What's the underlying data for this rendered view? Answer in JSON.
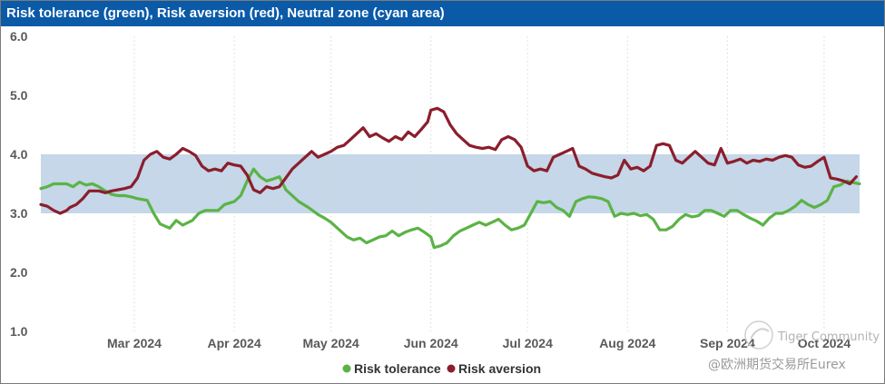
{
  "chart_data": {
    "type": "line",
    "title": "Risk tolerance (green), Risk aversion (red), Neutral zone (cyan area)",
    "ylim": [
      1.0,
      6.0
    ],
    "yticks": [
      "6.0",
      "5.0",
      "4.0",
      "3.0",
      "2.0",
      "1.0"
    ],
    "ytick_values": [
      6.0,
      5.0,
      4.0,
      3.0,
      2.0,
      1.0
    ],
    "xlim": [
      0,
      240
    ],
    "xticks": [
      {
        "label": "Mar 2024",
        "x": 29
      },
      {
        "label": "Apr 2024",
        "x": 60
      },
      {
        "label": "May 2024",
        "x": 90
      },
      {
        "label": "Jun 2024",
        "x": 121
      },
      {
        "label": "Jul 2024",
        "x": 151
      },
      {
        "label": "Aug 2024",
        "x": 182
      },
      {
        "label": "Sep 2024",
        "x": 213
      },
      {
        "label": "Oct 2024",
        "x": 243
      }
    ],
    "neutral_zone": {
      "low": 3.0,
      "high": 4.0,
      "color": "#c5d7e8"
    },
    "grid": "vertical dotted",
    "legend": "bottom-center",
    "series": [
      {
        "name": "Risk tolerance",
        "color": "#5bb346",
        "points": [
          [
            0,
            3.42
          ],
          [
            2,
            3.45
          ],
          [
            4,
            3.5
          ],
          [
            8,
            3.5
          ],
          [
            10,
            3.45
          ],
          [
            12,
            3.53
          ],
          [
            14,
            3.48
          ],
          [
            16,
            3.5
          ],
          [
            18,
            3.45
          ],
          [
            20,
            3.38
          ],
          [
            22,
            3.32
          ],
          [
            24,
            3.3
          ],
          [
            26,
            3.3
          ],
          [
            28,
            3.28
          ],
          [
            30,
            3.25
          ],
          [
            33,
            3.22
          ],
          [
            35,
            3.0
          ],
          [
            37,
            2.82
          ],
          [
            40,
            2.75
          ],
          [
            42,
            2.88
          ],
          [
            44,
            2.8
          ],
          [
            47,
            2.88
          ],
          [
            49,
            3.0
          ],
          [
            51,
            3.05
          ],
          [
            55,
            3.05
          ],
          [
            57,
            3.15
          ],
          [
            60,
            3.2
          ],
          [
            62,
            3.3
          ],
          [
            64,
            3.55
          ],
          [
            66,
            3.75
          ],
          [
            68,
            3.62
          ],
          [
            70,
            3.55
          ],
          [
            72,
            3.58
          ],
          [
            74,
            3.62
          ],
          [
            76,
            3.4
          ],
          [
            78,
            3.3
          ],
          [
            80,
            3.2
          ],
          [
            83,
            3.1
          ],
          [
            86,
            2.98
          ],
          [
            88,
            2.92
          ],
          [
            90,
            2.85
          ],
          [
            92,
            2.75
          ],
          [
            95,
            2.6
          ],
          [
            97,
            2.55
          ],
          [
            99,
            2.58
          ],
          [
            101,
            2.5
          ],
          [
            103,
            2.55
          ],
          [
            105,
            2.6
          ],
          [
            107,
            2.62
          ],
          [
            109,
            2.7
          ],
          [
            111,
            2.62
          ],
          [
            113,
            2.68
          ],
          [
            115,
            2.72
          ],
          [
            117,
            2.75
          ],
          [
            119,
            2.68
          ],
          [
            121,
            2.6
          ],
          [
            122,
            2.42
          ],
          [
            124,
            2.45
          ],
          [
            126,
            2.5
          ],
          [
            128,
            2.62
          ],
          [
            130,
            2.7
          ],
          [
            132,
            2.75
          ],
          [
            134,
            2.8
          ],
          [
            136,
            2.85
          ],
          [
            138,
            2.8
          ],
          [
            140,
            2.85
          ],
          [
            142,
            2.9
          ],
          [
            144,
            2.8
          ],
          [
            146,
            2.72
          ],
          [
            148,
            2.75
          ],
          [
            150,
            2.8
          ],
          [
            152,
            3.0
          ],
          [
            154,
            3.2
          ],
          [
            156,
            3.18
          ],
          [
            158,
            3.2
          ],
          [
            160,
            3.1
          ],
          [
            162,
            3.05
          ],
          [
            164,
            2.95
          ],
          [
            166,
            3.2
          ],
          [
            168,
            3.25
          ],
          [
            170,
            3.28
          ],
          [
            172,
            3.27
          ],
          [
            174,
            3.25
          ],
          [
            176,
            3.2
          ],
          [
            178,
            2.95
          ],
          [
            180,
            3.0
          ],
          [
            182,
            2.98
          ],
          [
            184,
            3.0
          ],
          [
            186,
            2.96
          ],
          [
            188,
            2.98
          ],
          [
            190,
            2.9
          ],
          [
            192,
            2.72
          ],
          [
            194,
            2.72
          ],
          [
            196,
            2.78
          ],
          [
            198,
            2.9
          ],
          [
            200,
            2.98
          ],
          [
            202,
            2.94
          ],
          [
            204,
            2.96
          ],
          [
            206,
            3.05
          ],
          [
            208,
            3.05
          ],
          [
            210,
            3.0
          ],
          [
            212,
            2.95
          ],
          [
            214,
            3.05
          ],
          [
            216,
            3.05
          ],
          [
            218,
            2.98
          ],
          [
            220,
            2.92
          ],
          [
            222,
            2.87
          ],
          [
            224,
            2.8
          ],
          [
            226,
            2.92
          ],
          [
            228,
            3.0
          ],
          [
            230,
            3.0
          ],
          [
            232,
            3.05
          ],
          [
            234,
            3.12
          ],
          [
            236,
            3.22
          ],
          [
            238,
            3.15
          ],
          [
            240,
            3.1
          ],
          [
            242,
            3.15
          ],
          [
            244,
            3.22
          ],
          [
            246,
            3.45
          ],
          [
            248,
            3.48
          ],
          [
            250,
            3.55
          ],
          [
            252,
            3.52
          ],
          [
            254,
            3.5
          ]
        ]
      },
      {
        "name": "Risk aversion",
        "color": "#8b1e2d",
        "points": [
          [
            0,
            3.15
          ],
          [
            2,
            3.12
          ],
          [
            4,
            3.05
          ],
          [
            6,
            3.0
          ],
          [
            8,
            3.05
          ],
          [
            9,
            3.1
          ],
          [
            11,
            3.15
          ],
          [
            13,
            3.25
          ],
          [
            15,
            3.38
          ],
          [
            18,
            3.38
          ],
          [
            20,
            3.35
          ],
          [
            22,
            3.38
          ],
          [
            24,
            3.4
          ],
          [
            26,
            3.42
          ],
          [
            28,
            3.45
          ],
          [
            30,
            3.6
          ],
          [
            32,
            3.9
          ],
          [
            34,
            4.0
          ],
          [
            36,
            4.05
          ],
          [
            38,
            3.95
          ],
          [
            40,
            3.92
          ],
          [
            42,
            4.0
          ],
          [
            44,
            4.1
          ],
          [
            46,
            4.05
          ],
          [
            48,
            3.98
          ],
          [
            50,
            3.8
          ],
          [
            52,
            3.72
          ],
          [
            54,
            3.75
          ],
          [
            56,
            3.72
          ],
          [
            58,
            3.85
          ],
          [
            60,
            3.82
          ],
          [
            62,
            3.8
          ],
          [
            64,
            3.65
          ],
          [
            66,
            3.4
          ],
          [
            68,
            3.35
          ],
          [
            70,
            3.45
          ],
          [
            72,
            3.42
          ],
          [
            74,
            3.45
          ],
          [
            76,
            3.6
          ],
          [
            78,
            3.75
          ],
          [
            80,
            3.85
          ],
          [
            82,
            3.95
          ],
          [
            84,
            4.05
          ],
          [
            86,
            3.95
          ],
          [
            88,
            4.0
          ],
          [
            90,
            4.05
          ],
          [
            92,
            4.12
          ],
          [
            94,
            4.15
          ],
          [
            96,
            4.25
          ],
          [
            98,
            4.35
          ],
          [
            100,
            4.45
          ],
          [
            102,
            4.3
          ],
          [
            104,
            4.35
          ],
          [
            106,
            4.28
          ],
          [
            108,
            4.22
          ],
          [
            110,
            4.3
          ],
          [
            112,
            4.25
          ],
          [
            114,
            4.38
          ],
          [
            116,
            4.3
          ],
          [
            118,
            4.42
          ],
          [
            120,
            4.55
          ],
          [
            121,
            4.75
          ],
          [
            123,
            4.78
          ],
          [
            125,
            4.72
          ],
          [
            127,
            4.5
          ],
          [
            129,
            4.35
          ],
          [
            131,
            4.25
          ],
          [
            133,
            4.15
          ],
          [
            135,
            4.12
          ],
          [
            137,
            4.1
          ],
          [
            139,
            4.12
          ],
          [
            141,
            4.08
          ],
          [
            143,
            4.25
          ],
          [
            145,
            4.3
          ],
          [
            147,
            4.25
          ],
          [
            149,
            4.12
          ],
          [
            151,
            3.8
          ],
          [
            153,
            3.72
          ],
          [
            155,
            3.75
          ],
          [
            157,
            3.72
          ],
          [
            159,
            3.95
          ],
          [
            161,
            4.0
          ],
          [
            163,
            4.05
          ],
          [
            165,
            4.1
          ],
          [
            167,
            3.8
          ],
          [
            169,
            3.75
          ],
          [
            171,
            3.68
          ],
          [
            173,
            3.65
          ],
          [
            175,
            3.62
          ],
          [
            177,
            3.6
          ],
          [
            179,
            3.65
          ],
          [
            181,
            3.9
          ],
          [
            183,
            3.75
          ],
          [
            185,
            3.78
          ],
          [
            187,
            3.72
          ],
          [
            189,
            3.8
          ],
          [
            191,
            4.15
          ],
          [
            193,
            4.18
          ],
          [
            195,
            4.15
          ],
          [
            197,
            3.9
          ],
          [
            199,
            3.85
          ],
          [
            201,
            3.95
          ],
          [
            203,
            4.05
          ],
          [
            205,
            3.95
          ],
          [
            207,
            3.85
          ],
          [
            209,
            3.82
          ],
          [
            211,
            4.1
          ],
          [
            213,
            3.85
          ],
          [
            215,
            3.88
          ],
          [
            217,
            3.92
          ],
          [
            219,
            3.85
          ],
          [
            221,
            3.9
          ],
          [
            223,
            3.88
          ],
          [
            225,
            3.92
          ],
          [
            227,
            3.9
          ],
          [
            229,
            3.95
          ],
          [
            231,
            3.98
          ],
          [
            233,
            3.95
          ],
          [
            235,
            3.82
          ],
          [
            237,
            3.78
          ],
          [
            239,
            3.8
          ],
          [
            241,
            3.88
          ],
          [
            243,
            3.95
          ],
          [
            245,
            3.6
          ],
          [
            247,
            3.58
          ],
          [
            249,
            3.55
          ],
          [
            251,
            3.5
          ],
          [
            253,
            3.62
          ]
        ]
      }
    ]
  },
  "watermark": {
    "line1": "Tiger Community",
    "line2": "@欧洲期货交易所Eurex"
  }
}
